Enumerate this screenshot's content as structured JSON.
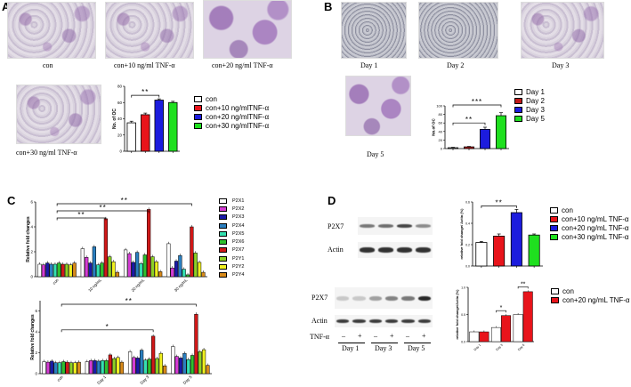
{
  "panels": {
    "A": "A",
    "B": "B",
    "C": "C",
    "D": "D"
  },
  "panelA": {
    "captions": [
      "con",
      "con+10 ng/ml TNF-α",
      "con+20 ng/ml TNF-α",
      "con+30 ng/ml TNF-α"
    ]
  },
  "panelB": {
    "captions": [
      "Day 1",
      "Day 2",
      "Day 3",
      "Day 5"
    ]
  },
  "panelD": {
    "blot1": {
      "rows": [
        "P2X7",
        "Actin"
      ],
      "p2x7_intensity": [
        0.55,
        0.6,
        0.8,
        0.45
      ],
      "actin_intensity": [
        0.9,
        0.9,
        0.9,
        0.9
      ]
    },
    "blot2": {
      "rows": [
        "P2X7",
        "Actin"
      ],
      "treatment_label": "TNF-α",
      "signs": [
        "–",
        "+",
        "–",
        "+",
        "–",
        "+"
      ],
      "days": [
        "Day 1",
        "Day 3",
        "Day 5"
      ],
      "p2x7_intensity": [
        0.15,
        0.15,
        0.35,
        0.5,
        0.55,
        0.95
      ],
      "actin_intensity": [
        0.85,
        0.85,
        0.85,
        0.85,
        0.85,
        0.85
      ]
    }
  },
  "chart_data": [
    {
      "id": "A",
      "type": "bar",
      "ylabel": "No. of OC",
      "ylim": [
        0,
        80
      ],
      "yticks": [
        "0",
        "20",
        "40",
        "60",
        "80"
      ],
      "categories": [
        "con",
        "con+10 ng/mlTNF-α",
        "con+20 ng/mlTNF-α",
        "con+30 ng/mlTNF-α"
      ],
      "values": [
        35,
        45,
        63,
        60
      ],
      "errors": [
        2,
        2,
        1.5,
        1.5
      ],
      "colors": [
        "#ffffff",
        "#e8141b",
        "#1c1cdd",
        "#1fe01f"
      ],
      "legend": [
        "con",
        "con+10 ng/mlTNF-α",
        "con+20 ng/mlTNF-α",
        "con+30 ng/mlTNF-α"
      ],
      "significance": [
        {
          "from": 0,
          "to": 2,
          "label": "**"
        }
      ]
    },
    {
      "id": "B",
      "type": "bar",
      "ylabel": "No.of OC",
      "ylim": [
        0,
        100
      ],
      "yticks": [
        "0",
        "20",
        "40",
        "60",
        "80",
        "100"
      ],
      "categories": [
        "Day 1",
        "Day 2",
        "Day 3",
        "Day 5"
      ],
      "values": [
        2,
        4,
        45,
        77
      ],
      "errors": [
        1,
        1,
        5,
        7
      ],
      "colors": [
        "#ffffff",
        "#c01818",
        "#1c1cdd",
        "#1fe01f"
      ],
      "legend": [
        "Day 1",
        "Day 2",
        "Day 3",
        "Day 5"
      ],
      "significance": [
        {
          "from": 0,
          "to": 2,
          "label": "**"
        },
        {
          "from": 0,
          "to": 3,
          "label": "***"
        }
      ]
    },
    {
      "id": "C1",
      "type": "bar",
      "ylabel": "Relative fold changes",
      "ylim": [
        0,
        6
      ],
      "yticks": [
        "0",
        "2",
        "4",
        "6"
      ],
      "categories": [
        "con",
        "10 ng/mL",
        "20 ng/mL",
        "30 ng/mL"
      ],
      "legend": [
        "P2X1",
        "P2X2",
        "P2X3",
        "P2X4",
        "P2X5",
        "P2X6",
        "P2X7",
        "P2Y1",
        "P2Y2",
        "P2Y4"
      ],
      "colors": [
        "#ffffff",
        "#d43bd4",
        "#1a1aa8",
        "#2a7fc0",
        "#34e0b0",
        "#2ec02e",
        "#d01818",
        "#8cd024",
        "#f0f020",
        "#d88a1a"
      ],
      "series_values": [
        [
          1.0,
          0.95,
          1.1,
          1.0,
          1.0,
          1.1,
          1.0,
          1.0,
          0.95,
          1.1
        ],
        [
          2.25,
          1.55,
          1.1,
          2.4,
          0.95,
          1.1,
          4.65,
          1.6,
          1.2,
          0.35
        ],
        [
          2.15,
          1.85,
          1.15,
          1.95,
          1.05,
          1.75,
          5.4,
          1.6,
          1.2,
          0.4
        ],
        [
          2.65,
          0.7,
          1.25,
          1.7,
          0.6,
          0.15,
          4.0,
          1.9,
          1.15,
          0.35
        ]
      ],
      "significance": [
        {
          "from": 0,
          "to": 1,
          "label": "**"
        },
        {
          "from": 0,
          "to": 2,
          "label": "**"
        },
        {
          "from": 0,
          "to": 3,
          "label": "**"
        }
      ]
    },
    {
      "id": "C2",
      "type": "bar",
      "ylabel": "Relative fold changes",
      "ylim": [
        0,
        7
      ],
      "yticks": [
        "0",
        "2",
        "4",
        "6"
      ],
      "categories": [
        "con",
        "Day 1",
        "Day 3",
        "Day 5"
      ],
      "colors": [
        "#ffffff",
        "#d43bd4",
        "#1a1aa8",
        "#2a7fc0",
        "#34e0b0",
        "#2ec02e",
        "#d01818",
        "#8cd024",
        "#f0f020",
        "#d88a1a"
      ],
      "series_values": [
        [
          1.15,
          1.1,
          1.2,
          1.05,
          1.05,
          1.15,
          1.1,
          1.05,
          1.05,
          1.1
        ],
        [
          1.15,
          1.25,
          1.25,
          1.2,
          1.25,
          1.25,
          1.8,
          1.45,
          1.55,
          1.1
        ],
        [
          2.1,
          1.55,
          1.5,
          2.25,
          1.3,
          1.4,
          3.6,
          1.45,
          1.95,
          0.75
        ],
        [
          2.6,
          1.65,
          1.5,
          1.95,
          1.35,
          1.75,
          5.7,
          2.1,
          2.3,
          0.8
        ]
      ],
      "significance": [
        {
          "from": 0,
          "to": 2,
          "label": "*"
        },
        {
          "from": 0,
          "to": 3,
          "label": "**"
        }
      ]
    },
    {
      "id": "D1",
      "type": "bar",
      "ylabel": "relative fold change/ Actin (%)",
      "ylim": [
        0,
        0.6
      ],
      "yticks": [
        "0.0",
        "0.2",
        "0.4",
        "0.6"
      ],
      "categories": [
        "con",
        "con+10 ng/mL TNF-α",
        "con+20 ng/mL TNF-α",
        "con+30 ng/mL TNF-α"
      ],
      "values": [
        0.22,
        0.28,
        0.5,
        0.29
      ],
      "errors": [
        0.01,
        0.02,
        0.03,
        0.01
      ],
      "colors": [
        "#ffffff",
        "#e8141b",
        "#1c1cdd",
        "#1fe01f"
      ],
      "legend": [
        "con",
        "con+10 ng/mL TNF-α",
        "con+20 ng/mL TNF-α",
        "con+30 ng/mL TNF-α"
      ],
      "significance": [
        {
          "from": 0,
          "to": 2,
          "label": "**"
        }
      ]
    },
    {
      "id": "D2",
      "type": "bar",
      "ylabel": "relative fold change/Actin (%)",
      "ylim": [
        0,
        1.0
      ],
      "yticks": [
        "0.0",
        "0.5",
        "1.0"
      ],
      "categories": [
        "Day 1",
        "Day 3",
        "Day 5"
      ],
      "series_names": [
        "con",
        "con+20 ng/mL TNF-α"
      ],
      "colors": [
        "#ffffff",
        "#e8141b"
      ],
      "series_values": [
        [
          0.18,
          0.18
        ],
        [
          0.26,
          0.48
        ],
        [
          0.5,
          0.92
        ]
      ],
      "legend": [
        "con",
        "con+20 ng/mL TNF-α"
      ],
      "significance": [
        {
          "group": 1,
          "label": "*"
        },
        {
          "group": 2,
          "label": "**"
        }
      ]
    }
  ]
}
